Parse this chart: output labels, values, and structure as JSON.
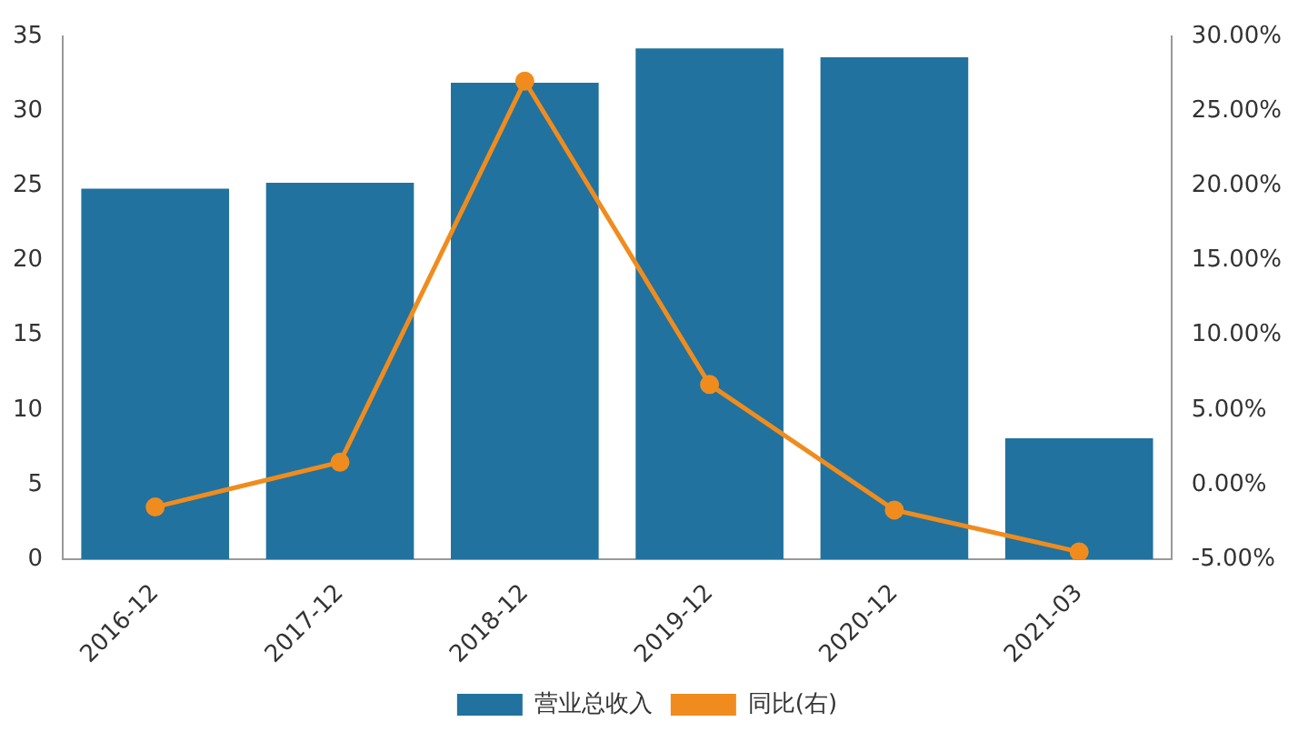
{
  "chart_data": {
    "type": "bar",
    "categories": [
      "2016-12",
      "2017-12",
      "2018-12",
      "2019-12",
      "2020-12",
      "2021-03"
    ],
    "series": [
      {
        "name": "营业总收入",
        "color": "#21729e",
        "values": [
          24.8,
          25.2,
          31.9,
          34.2,
          33.6,
          8.1
        ]
      },
      {
        "name": "同比(右)",
        "type": "line",
        "axis": "y2",
        "color": "#f08c1e",
        "values": [
          -1.5,
          1.5,
          27.0,
          6.7,
          -1.7,
          -4.5
        ]
      }
    ],
    "ylim": [
      0,
      35
    ],
    "yticks": [
      0,
      5,
      10,
      15,
      20,
      25,
      30,
      35
    ],
    "y2lim": [
      -5,
      30
    ],
    "y2ticks": [
      {
        "value": -5,
        "label": "-5.00%"
      },
      {
        "value": 0,
        "label": "0.00%"
      },
      {
        "value": 5,
        "label": "5.00%"
      },
      {
        "value": 10,
        "label": "10.00%"
      },
      {
        "value": 15,
        "label": "15.00%"
      },
      {
        "value": 20,
        "label": "20.00%"
      },
      {
        "value": 25,
        "label": "25.00%"
      },
      {
        "value": 30,
        "label": "30.00%"
      }
    ],
    "grid": false,
    "legend": "bottom",
    "marker": "circle"
  }
}
